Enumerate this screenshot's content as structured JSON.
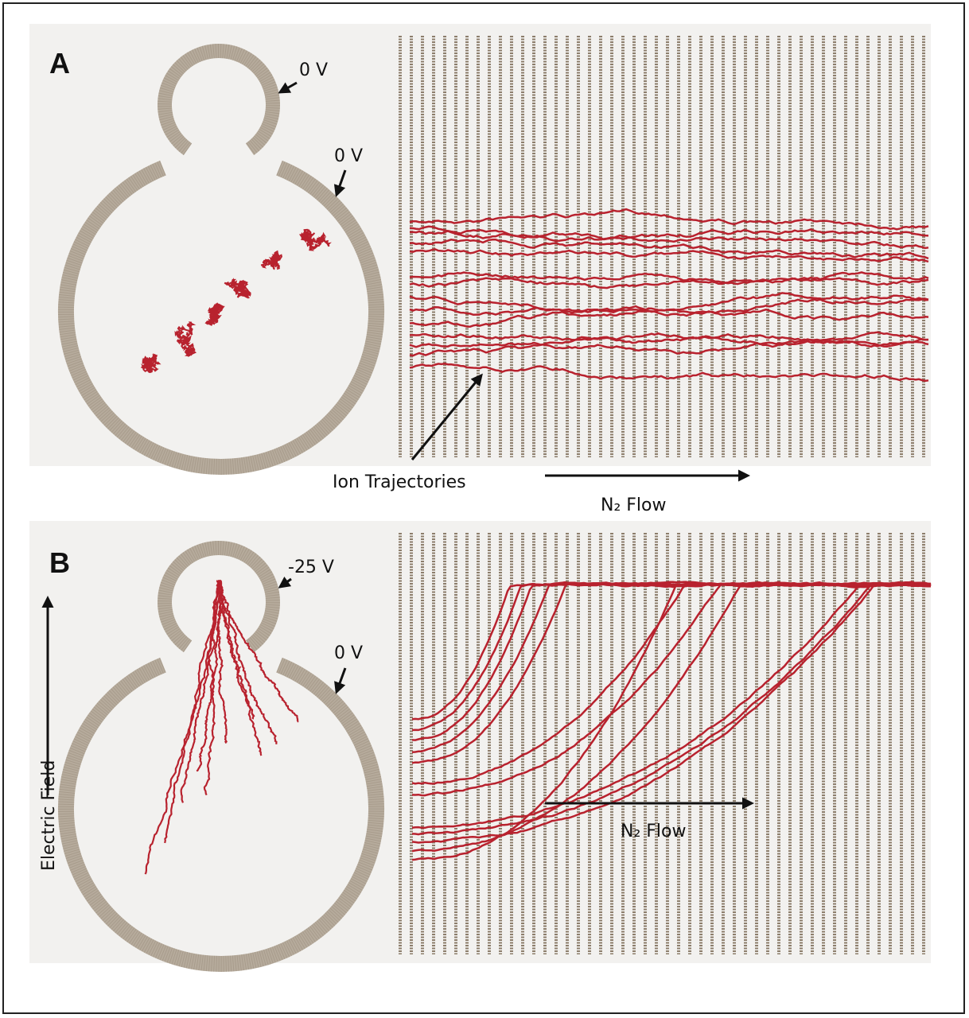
{
  "panel_a": {
    "label": "A",
    "voltage_top": "0 V",
    "voltage_outer": "0 V",
    "ion_trajectories": "Ion Trajectories",
    "flow": "N₂ Flow"
  },
  "panel_b": {
    "label": "B",
    "voltage_top": "-25 V",
    "voltage_outer": "0 V",
    "field": "Electric Field",
    "flow": "N₂ Flow"
  }
}
